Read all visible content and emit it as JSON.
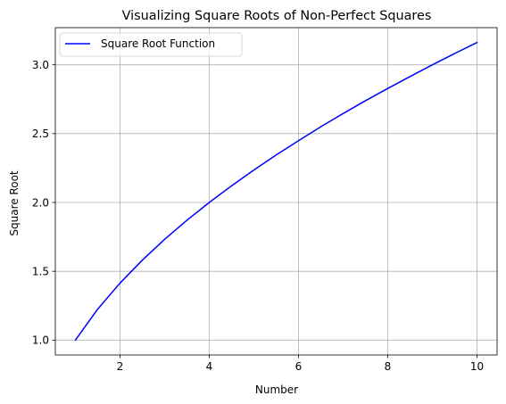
{
  "chart_data": {
    "type": "line",
    "title": "Visualizing Square Roots of Non-Perfect Squares",
    "xlabel": "Number",
    "ylabel": "Square Root",
    "xlim": [
      0.55,
      10.45
    ],
    "ylim": [
      0.892,
      3.27
    ],
    "xticks": [
      2,
      4,
      6,
      8,
      10
    ],
    "xtick_labels": [
      "2",
      "4",
      "6",
      "8",
      "10"
    ],
    "yticks": [
      1.0,
      1.5,
      2.0,
      2.5,
      3.0
    ],
    "ytick_labels": [
      "1.0",
      "1.5",
      "2.0",
      "2.5",
      "3.0"
    ],
    "grid": true,
    "legend_position": "top-left",
    "series": [
      {
        "name": "Square Root Function",
        "color": "#0000ff",
        "x": [
          1.0,
          1.5,
          2.0,
          2.5,
          3.0,
          3.5,
          4.0,
          4.5,
          5.0,
          5.5,
          6.0,
          6.5,
          7.0,
          7.5,
          8.0,
          8.5,
          9.0,
          9.5,
          10.0
        ],
        "y": [
          1.0,
          1.225,
          1.414,
          1.581,
          1.732,
          1.871,
          2.0,
          2.121,
          2.236,
          2.345,
          2.449,
          2.55,
          2.646,
          2.739,
          2.828,
          2.915,
          3.0,
          3.082,
          3.162
        ]
      }
    ]
  }
}
